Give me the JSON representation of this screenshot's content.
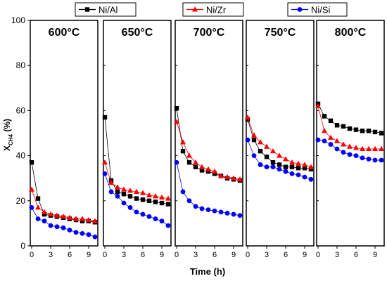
{
  "chart_data": {
    "type": "scatter",
    "ylabel": "X",
    "ylabel_sub": "CH4",
    "ylabel_unit": " (%)",
    "xlabel": "Time (h)",
    "ylim": [
      0,
      100
    ],
    "xlim": [
      0,
      10
    ],
    "yticks": [
      0,
      20,
      40,
      60,
      80,
      100
    ],
    "xticks": [
      0,
      3,
      6,
      9
    ],
    "legend": [
      {
        "name": "Ni/Al",
        "color": "#000000",
        "marker": "square",
        "position": "top-left"
      },
      {
        "name": "Ni/Zr",
        "color": "#ff0000",
        "marker": "triangle",
        "position": "top-center"
      },
      {
        "name": "Ni/Si",
        "color": "#0000ff",
        "marker": "circle",
        "position": "top-right"
      }
    ],
    "panels": [
      {
        "label": "600°C",
        "series": [
          {
            "name": "Ni/Al",
            "x": [
              0,
              1,
              2,
              3,
              4,
              5,
              6,
              7,
              8,
              9,
              10
            ],
            "y": [
              37,
              21,
              14,
              13.5,
              13,
              12.5,
              12,
              11.5,
              11,
              11,
              10.5
            ]
          },
          {
            "name": "Ni/Zr",
            "x": [
              0,
              1,
              2,
              3,
              4,
              5,
              6,
              7,
              8,
              9,
              10
            ],
            "y": [
              25,
              17,
              15,
              14,
              13.5,
              13,
              12.5,
              12,
              12,
              11.5,
              11
            ]
          },
          {
            "name": "Ni/Si",
            "x": [
              0,
              1,
              2,
              3,
              4,
              5,
              6,
              7,
              8,
              9,
              10
            ],
            "y": [
              17,
              12,
              11,
              9,
              8.5,
              8,
              7,
              6,
              5.5,
              5,
              4
            ]
          }
        ]
      },
      {
        "label": "650°C",
        "series": [
          {
            "name": "Ni/Al",
            "x": [
              0,
              1,
              2,
              3,
              4,
              5,
              6,
              7,
              8,
              9,
              10
            ],
            "y": [
              57,
              29,
              24,
              23,
              22,
              21,
              20.5,
              20,
              19.5,
              19,
              18.5
            ]
          },
          {
            "name": "Ni/Zr",
            "x": [
              0,
              1,
              2,
              3,
              4,
              5,
              6,
              7,
              8,
              9,
              10
            ],
            "y": [
              37,
              28,
              26,
              25,
              24.5,
              24,
              23.5,
              22.5,
              22,
              21.5,
              21
            ]
          },
          {
            "name": "Ni/Si",
            "x": [
              0,
              1,
              2,
              3,
              4,
              5,
              6,
              7,
              8,
              9,
              10
            ],
            "y": [
              32,
              24,
              22,
              19,
              17,
              15,
              14,
              13,
              12,
              11,
              9
            ]
          }
        ]
      },
      {
        "label": "700°C",
        "series": [
          {
            "name": "Ni/Al",
            "x": [
              0,
              1,
              2,
              3,
              4,
              5,
              6,
              7,
              8,
              9,
              10
            ],
            "y": [
              61,
              42,
              37,
              35,
              33.5,
              33,
              32,
              31,
              30,
              29.5,
              29
            ]
          },
          {
            "name": "Ni/Zr",
            "x": [
              0,
              1,
              2,
              3,
              4,
              5,
              6,
              7,
              8,
              9,
              10
            ],
            "y": [
              55,
              46,
              40,
              37,
              35,
              34,
              33,
              31,
              30.5,
              30,
              29.5
            ]
          },
          {
            "name": "Ni/Si",
            "x": [
              0,
              1,
              2,
              3,
              4,
              5,
              6,
              7,
              8,
              9,
              10
            ],
            "y": [
              37,
              24,
              20,
              17.5,
              16.5,
              16,
              15.5,
              15,
              14.5,
              14,
              13.5
            ]
          }
        ]
      },
      {
        "label": "750°C",
        "series": [
          {
            "name": "Ni/Al",
            "x": [
              0,
              1,
              2,
              3,
              4,
              5,
              6,
              7,
              8,
              9,
              10
            ],
            "y": [
              56,
              47,
              42,
              39.5,
              37,
              36,
              35,
              35,
              34.5,
              34.5,
              34
            ]
          },
          {
            "name": "Ni/Zr",
            "x": [
              0,
              1,
              2,
              3,
              4,
              5,
              6,
              7,
              8,
              9,
              10
            ],
            "y": [
              57,
              49,
              46,
              44,
              42,
              40,
              38.5,
              37,
              36.5,
              36,
              35
            ]
          },
          {
            "name": "Ni/Si",
            "x": [
              0,
              1,
              2,
              3,
              4,
              5,
              6,
              7,
              8,
              9,
              10
            ],
            "y": [
              47,
              40,
              36,
              35,
              35,
              34,
              33,
              32,
              31.5,
              30.5,
              29.5
            ]
          }
        ]
      },
      {
        "label": "800°C",
        "series": [
          {
            "name": "Ni/Al",
            "x": [
              0,
              1,
              2,
              3,
              4,
              5,
              6,
              7,
              8,
              9,
              10
            ],
            "y": [
              63,
              57.5,
              55.5,
              53.5,
              53,
              52,
              51.5,
              51,
              51,
              50.5,
              50
            ]
          },
          {
            "name": "Ni/Zr",
            "x": [
              0,
              1,
              2,
              3,
              4,
              5,
              6,
              7,
              8,
              9,
              10
            ],
            "y": [
              62,
              51,
              48,
              46.5,
              45,
              44,
              43.5,
              43,
              43,
              43,
              43
            ]
          },
          {
            "name": "Ni/Si",
            "x": [
              0,
              1,
              2,
              3,
              4,
              5,
              6,
              7,
              8,
              9,
              10
            ],
            "y": [
              47,
              46.5,
              45,
              43,
              41.5,
              40.5,
              40,
              39,
              38.5,
              38,
              38
            ]
          }
        ]
      }
    ]
  }
}
